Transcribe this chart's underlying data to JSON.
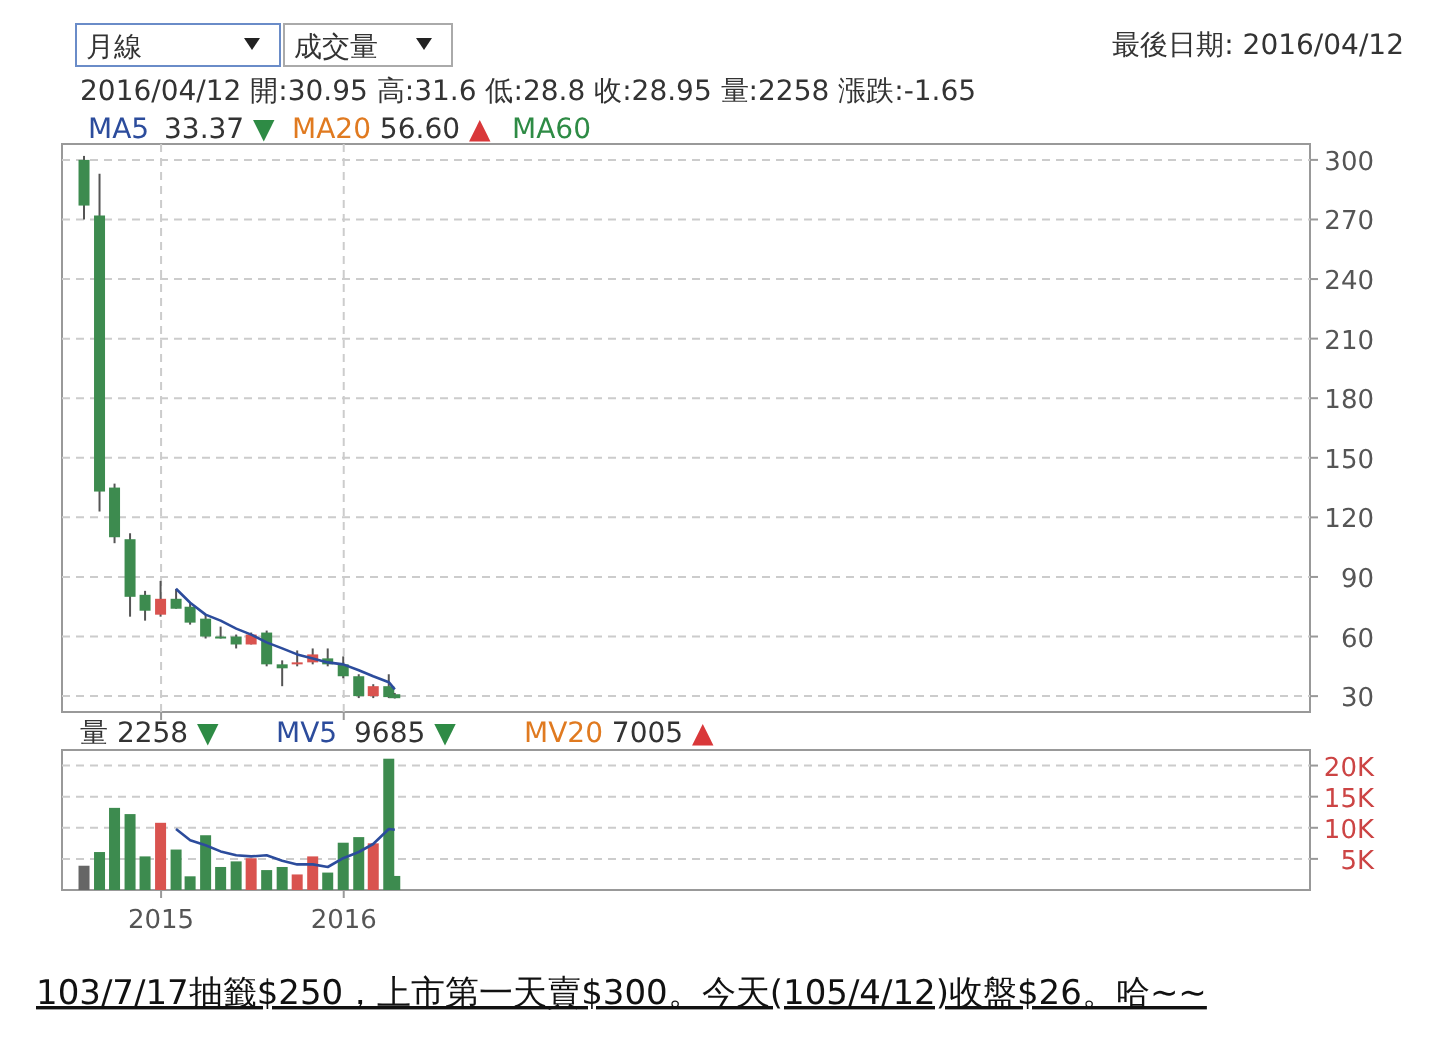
{
  "chart_data": [
    {
      "type": "candlestick",
      "subtitle": "2016/04/12 開:30.95 高:31.6 低:28.8 收:28.95 量:2258 漲跌:-1.65",
      "x": [
        "2014-07-31",
        "2014-08-31",
        "2014-09-30",
        "2014-10-31",
        "2014-11-30",
        "2014-12-31",
        "2015-01-31",
        "2015-02-28",
        "2015-03-31",
        "2015-04-30",
        "2015-05-31",
        "2015-06-30",
        "2015-07-31",
        "2015-08-31",
        "2015-09-30",
        "2015-10-31",
        "2015-11-30",
        "2015-12-31",
        "2016-01-31",
        "2016-02-29",
        "2016-03-31",
        "2016-04-12"
      ],
      "ohlc": [
        [
          300,
          302,
          270,
          277
        ],
        [
          272,
          293,
          123,
          133
        ],
        [
          135,
          137,
          107,
          110
        ],
        [
          109,
          112,
          70,
          80
        ],
        [
          81,
          83,
          68,
          73
        ],
        [
          71,
          88,
          70,
          79
        ],
        [
          79,
          84,
          74,
          74
        ],
        [
          75,
          77,
          66,
          67
        ],
        [
          69,
          71,
          59,
          60
        ],
        [
          60,
          65,
          59,
          59
        ],
        [
          60,
          61,
          54,
          56
        ],
        [
          56,
          62,
          56,
          61
        ],
        [
          62,
          63,
          45,
          46
        ],
        [
          46,
          48,
          35,
          44
        ],
        [
          46,
          53,
          45,
          47
        ],
        [
          47,
          54,
          46,
          51
        ],
        [
          49,
          54,
          45,
          46
        ],
        [
          46,
          50,
          39,
          40
        ],
        [
          40,
          41,
          29,
          30
        ],
        [
          30,
          36,
          29,
          35
        ],
        [
          35,
          41,
          29,
          29.5
        ],
        [
          30.95,
          31.6,
          28.8,
          28.95
        ]
      ],
      "colors": [
        "#3d8b4f",
        "#3d8b4f",
        "#3d8b4f",
        "#3d8b4f",
        "#3d8b4f",
        "#d9534f",
        "#3d8b4f",
        "#3d8b4f",
        "#3d8b4f",
        "#3d8b4f",
        "#3d8b4f",
        "#d9534f",
        "#3d8b4f",
        "#3d8b4f",
        "#d9534f",
        "#d9534f",
        "#3d8b4f",
        "#3d8b4f",
        "#3d8b4f",
        "#d9534f",
        "#3d8b4f",
        "#3d8b4f"
      ],
      "series": [
        {
          "type": "line",
          "name": "MA5",
          "color": "#2c4c9c",
          "values": [
            null,
            null,
            null,
            null,
            null,
            null,
            84,
            77,
            71,
            68,
            64,
            61,
            57,
            54,
            51,
            49,
            47,
            46,
            43,
            40,
            37,
            33.37
          ]
        }
      ],
      "xlim": [
        "2014-06-17",
        "2021-04-15"
      ],
      "xticks": [
        {
          "value": "2015-01-01",
          "label": null
        },
        {
          "value": "2016-01-01",
          "label": null
        }
      ],
      "ylim": [
        22,
        308
      ],
      "yticks": [
        30,
        60,
        90,
        120,
        150,
        180,
        210,
        240,
        270,
        300
      ],
      "grid": true,
      "tick_labels": "y",
      "annotations": [
        "月線",
        "成交量",
        "最後日期: 2016/04/12",
        "33.37 ▼",
        "MA20 56.60 ▲",
        "MA60"
      ]
    },
    {
      "type": "bar",
      "x": [
        "2014-07-31",
        "2014-08-31",
        "2014-09-30",
        "2014-10-31",
        "2014-11-30",
        "2014-12-31",
        "2015-01-31",
        "2015-02-28",
        "2015-03-31",
        "2015-04-30",
        "2015-05-31",
        "2015-06-30",
        "2015-07-31",
        "2015-08-31",
        "2015-09-30",
        "2015-10-31",
        "2015-11-30",
        "2015-12-31",
        "2016-01-31",
        "2016-02-29",
        "2016-03-31",
        "2016-04-12"
      ],
      "values": [
        3900,
        6100,
        13200,
        12200,
        5400,
        10800,
        6500,
        2200,
        8800,
        3700,
        4600,
        5100,
        3200,
        3700,
        2500,
        5400,
        2800,
        7600,
        8500,
        7500,
        21100,
        2258
      ],
      "colors": [
        "#666666",
        "#3d8b4f",
        "#3d8b4f",
        "#3d8b4f",
        "#3d8b4f",
        "#d9534f",
        "#3d8b4f",
        "#3d8b4f",
        "#3d8b4f",
        "#3d8b4f",
        "#3d8b4f",
        "#d9534f",
        "#3d8b4f",
        "#3d8b4f",
        "#d9534f",
        "#d9534f",
        "#3d8b4f",
        "#3d8b4f",
        "#3d8b4f",
        "#d9534f",
        "#3d8b4f",
        "#3d8b4f"
      ],
      "series": [
        {
          "type": "line",
          "name": "MV5",
          "color": "#2c4c9c",
          "values": [
            null,
            null,
            null,
            null,
            null,
            null,
            9800,
            8000,
            7200,
            6200,
            5600,
            5400,
            5600,
            4700,
            4100,
            4100,
            3700,
            5100,
            6100,
            7400,
            9800,
            9685
          ]
        }
      ],
      "xlim": [
        "2014-06-17",
        "2021-04-15"
      ],
      "xticks": [
        {
          "value": "2015-01-01",
          "label": "2015"
        },
        {
          "value": "2016-01-01",
          "label": "2016"
        }
      ],
      "ylim": [
        0,
        22500
      ],
      "yticks": [
        {
          "value": 5000,
          "label": "5K"
        },
        {
          "value": 10000,
          "label": "10K"
        },
        {
          "value": 15000,
          "label": "15K"
        },
        {
          "value": 20000,
          "label": "20K"
        }
      ],
      "grid": "y",
      "annotations": [
        "量 2258 ▼",
        "9685 ▼",
        "MV20 7005 ▲",
        "103/7/17抽籤$250，上市第一天賣$300。今天(105/4/12)收盤$26。哈~~"
      ]
    }
  ]
}
